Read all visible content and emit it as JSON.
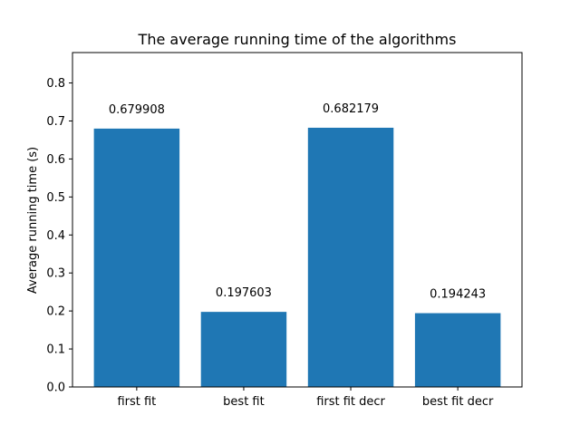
{
  "chart_data": {
    "type": "bar",
    "title": "The average running time of the algorithms",
    "xlabel": "",
    "ylabel": "Average running time (s)",
    "categories": [
      "first fit",
      "best fit",
      "first fit decr",
      "best fit decr"
    ],
    "values": [
      0.679908,
      0.197603,
      0.682179,
      0.194243
    ],
    "data_labels": [
      "0.679908",
      "0.197603",
      "0.682179",
      "0.194243"
    ],
    "ylim": [
      0,
      0.88
    ],
    "yticks": [
      0.0,
      0.1,
      0.2,
      0.3,
      0.4,
      0.5,
      0.6,
      0.7,
      0.8
    ],
    "ytick_labels": [
      "0.0",
      "0.1",
      "0.2",
      "0.3",
      "0.4",
      "0.5",
      "0.6",
      "0.7",
      "0.8"
    ],
    "bar_color": "#1f77b4",
    "grid": false,
    "legend": "none"
  }
}
